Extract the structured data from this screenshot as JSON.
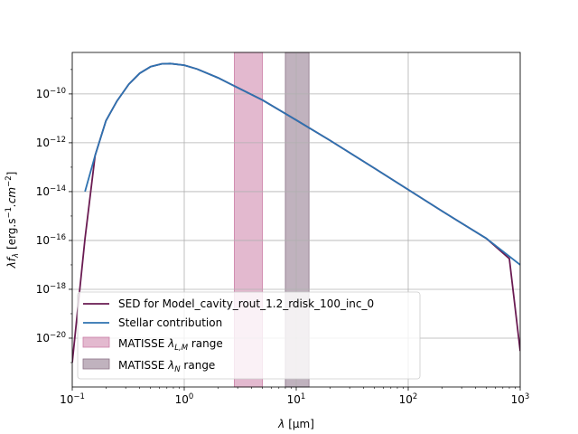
{
  "chart_data": {
    "type": "line",
    "xlabel_prefix": "λ",
    "xlabel_unit": "[μm]",
    "ylabel_main": "λf",
    "ylabel_sub": "λ",
    "ylabel_unit": "[erg.s",
    "ylabel_unit_sup1": "−1",
    "ylabel_unit_mid": ".cm",
    "ylabel_unit_sup2": "−2",
    "ylabel_unit_end": "]",
    "x_scale": "log",
    "y_scale": "log",
    "xlim": [
      0.1,
      1000
    ],
    "ylim": [
      1e-22,
      5e-09
    ],
    "grid": true,
    "legend_position": "lower-left",
    "x_ticks": [
      {
        "value": 0.1,
        "base": "10",
        "exp": "−1"
      },
      {
        "value": 1,
        "base": "10",
        "exp": "0"
      },
      {
        "value": 10,
        "base": "10",
        "exp": "1"
      },
      {
        "value": 100,
        "base": "10",
        "exp": "2"
      },
      {
        "value": 1000,
        "base": "10",
        "exp": "3"
      }
    ],
    "y_ticks": [
      {
        "value": 1e-20,
        "base": "10",
        "exp": "−20"
      },
      {
        "value": 1e-18,
        "base": "10",
        "exp": "−18"
      },
      {
        "value": 1e-16,
        "base": "10",
        "exp": "−16"
      },
      {
        "value": 1e-14,
        "base": "10",
        "exp": "−14"
      },
      {
        "value": 1e-12,
        "base": "10",
        "exp": "−12"
      },
      {
        "value": 1e-10,
        "base": "10",
        "exp": "−10"
      }
    ],
    "bands": [
      {
        "name": "MATISSE λL,M range",
        "label_pre": "MATISSE ",
        "label_sym": "λ",
        "label_sub": "L,M",
        "label_post": " range",
        "x_start": 2.8,
        "x_end": 5.0,
        "color": "#cc7fa8"
      },
      {
        "name": "MATISSE λN range",
        "label_pre": "MATISSE ",
        "label_sym": "λ",
        "label_sub": "N",
        "label_post": " range",
        "x_start": 8.0,
        "x_end": 13.0,
        "color": "#8c7388"
      }
    ],
    "series": [
      {
        "name": "SED for Model_cavity_rout_1.2_rdisk_100_inc_0",
        "color": "#6a1b52",
        "x": [
          0.1,
          0.13,
          0.16,
          0.2,
          0.25,
          0.32,
          0.4,
          0.5,
          0.63,
          0.75,
          1.0,
          1.3,
          2.0,
          3.0,
          5.0,
          10,
          20,
          50,
          100,
          200,
          500,
          800,
          1000
        ],
        "y": [
          1e-21,
          1.2e-16,
          3e-13,
          8e-12,
          5e-11,
          2.5e-10,
          7e-10,
          1.3e-09,
          1.7e-09,
          1.75e-09,
          1.5e-09,
          1.05e-09,
          4.6e-10,
          1.8e-10,
          5.6e-11,
          8.5e-12,
          1.25e-12,
          9e-14,
          1.2e-14,
          1.6e-15,
          1.2e-16,
          1.8e-17,
          3e-21
        ]
      },
      {
        "name": "Stellar contribution",
        "color": "#2e72b0",
        "x": [
          0.13,
          0.16,
          0.2,
          0.25,
          0.32,
          0.4,
          0.5,
          0.63,
          0.75,
          1.0,
          1.3,
          2.0,
          3.0,
          5.0,
          10,
          20,
          50,
          100,
          200,
          500,
          1000
        ],
        "y": [
          1e-14,
          3e-13,
          8e-12,
          5e-11,
          2.5e-10,
          7e-10,
          1.3e-09,
          1.7e-09,
          1.75e-09,
          1.5e-09,
          1.05e-09,
          4.6e-10,
          1.8e-10,
          5.6e-11,
          8.5e-12,
          1.25e-12,
          9e-14,
          1.2e-14,
          1.6e-15,
          1.2e-16,
          1e-17
        ]
      }
    ]
  }
}
